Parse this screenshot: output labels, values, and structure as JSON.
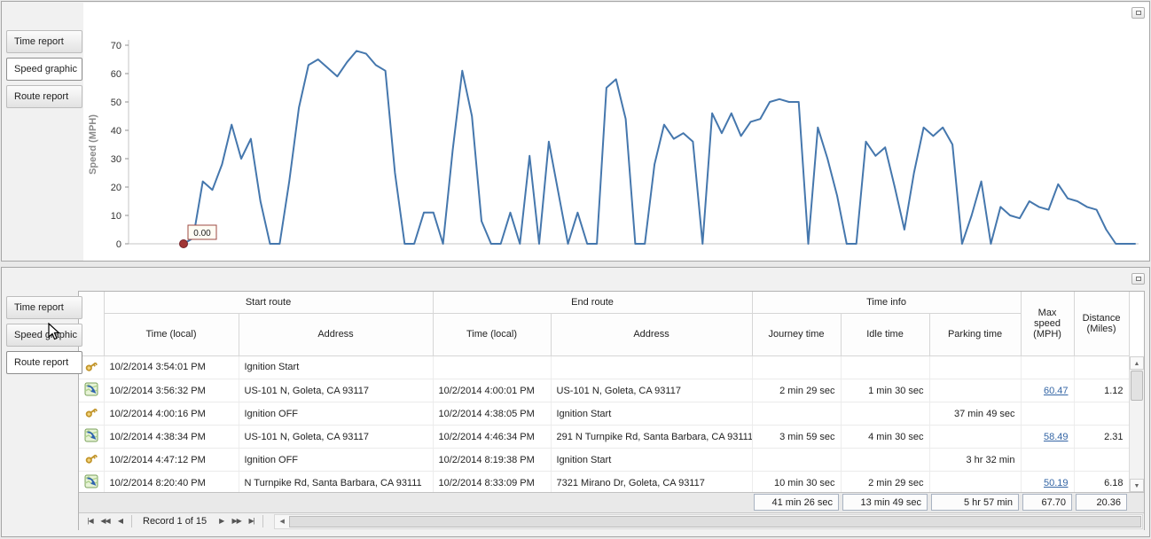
{
  "colors": {
    "chart_line": "#4577ad",
    "marker_fill": "#a03636",
    "marker_stroke": "#72232a",
    "link": "#3566a5",
    "annotation_border": "#9c4a42",
    "annotation_bg": "#fffdf4"
  },
  "tabs": [
    {
      "label": "Time report"
    },
    {
      "label": "Speed graphic"
    },
    {
      "label": "Route report"
    }
  ],
  "top_panel": {
    "active_tab": "Speed graphic"
  },
  "bottom_panel": {
    "active_tab": "Route report"
  },
  "chart_data": {
    "type": "line",
    "title": "",
    "xlabel": "",
    "ylabel": "Speed (MPH)",
    "ylim": [
      0,
      70
    ],
    "yticks": [
      0,
      10,
      20,
      30,
      40,
      50,
      60,
      70
    ],
    "grid": false,
    "legend": false,
    "series": [
      {
        "name": "Speed",
        "values": [
          0,
          2,
          22,
          19,
          28,
          42,
          30,
          37,
          15,
          0,
          0,
          22,
          48,
          63,
          65,
          62,
          59,
          64,
          68,
          67,
          63,
          61,
          25,
          0,
          0,
          11,
          11,
          0,
          33,
          61,
          45,
          8,
          0,
          0,
          11,
          0,
          31,
          0,
          36,
          18,
          0,
          11,
          0,
          0,
          55,
          58,
          44,
          0,
          0,
          28,
          42,
          37,
          39,
          36,
          0,
          46,
          39,
          46,
          38,
          43,
          44,
          50,
          51,
          50,
          50,
          0,
          41,
          30,
          17,
          0,
          0,
          36,
          31,
          34,
          20,
          5,
          25,
          41,
          38,
          41,
          35,
          0,
          10,
          22,
          0,
          13,
          10,
          9,
          15,
          13,
          12,
          21,
          16,
          15,
          13,
          12,
          5,
          0,
          0,
          0
        ]
      }
    ],
    "annotation": {
      "text": "0.00",
      "index": 0
    }
  },
  "table": {
    "groups": [
      "Start route",
      "End route",
      "Time info"
    ],
    "columns": [
      "Time (local)",
      "Address",
      "Time (local)",
      "Address",
      "Journey time",
      "Idle time",
      "Parking time",
      "Max speed (MPH)",
      "Distance (Miles)"
    ],
    "rows": [
      {
        "icon": "key",
        "start_time": "10/2/2014 3:54:01 PM",
        "start_address": "Ignition Start",
        "end_time": "",
        "end_address": "",
        "journey_time": "",
        "idle_time": "",
        "parking_time": "",
        "max_speed": "",
        "max_speed_link": false,
        "distance": ""
      },
      {
        "icon": "route",
        "start_time": "10/2/2014 3:56:32 PM",
        "start_address": "US-101 N, Goleta, CA 93117",
        "end_time": "10/2/2014 4:00:01 PM",
        "end_address": "US-101 N, Goleta, CA 93117",
        "journey_time": "2 min 29 sec",
        "idle_time": "1 min 30 sec",
        "parking_time": "",
        "max_speed": "60.47",
        "max_speed_link": true,
        "distance": "1.12"
      },
      {
        "icon": "key",
        "start_time": "10/2/2014 4:00:16 PM",
        "start_address": "Ignition OFF",
        "end_time": "10/2/2014 4:38:05 PM",
        "end_address": "Ignition Start",
        "journey_time": "",
        "idle_time": "",
        "parking_time": "37 min 49 sec",
        "max_speed": "",
        "max_speed_link": false,
        "distance": ""
      },
      {
        "icon": "route",
        "start_time": "10/2/2014 4:38:34 PM",
        "start_address": "US-101 N, Goleta, CA 93117",
        "end_time": "10/2/2014 4:46:34 PM",
        "end_address": "291 N Turnpike Rd, Santa Barbara, CA 93111",
        "journey_time": "3 min 59 sec",
        "idle_time": "4 min 30 sec",
        "parking_time": "",
        "max_speed": "58.49",
        "max_speed_link": true,
        "distance": "2.31"
      },
      {
        "icon": "key",
        "start_time": "10/2/2014 4:47:12 PM",
        "start_address": "Ignition OFF",
        "end_time": "10/2/2014 8:19:38 PM",
        "end_address": "Ignition Start",
        "journey_time": "",
        "idle_time": "",
        "parking_time": "3 hr 32 min",
        "max_speed": "",
        "max_speed_link": false,
        "distance": ""
      },
      {
        "icon": "route",
        "start_time": "10/2/2014 8:20:40 PM",
        "start_address": "N Turnpike Rd, Santa Barbara, CA 93111",
        "end_time": "10/2/2014 8:33:09 PM",
        "end_address": "7321 Mirano Dr, Goleta, CA 93117",
        "journey_time": "10 min 30 sec",
        "idle_time": "2 min 29 sec",
        "parking_time": "",
        "max_speed": "50.19",
        "max_speed_link": true,
        "distance": "6.18"
      }
    ],
    "summary": {
      "journey_time": "41 min 26 sec",
      "idle_time": "13 min 49 sec",
      "parking_time": "5 hr 57 min",
      "max_speed": "67.70",
      "distance": "20.36"
    }
  },
  "pager": {
    "label": "Record 1 of 15",
    "buttons_left": [
      "|◀",
      "◀◀",
      "◀"
    ],
    "buttons_right": [
      "▶",
      "▶▶",
      "▶|"
    ]
  },
  "icons": {
    "scroll_up": "▲",
    "scroll_down": "▼",
    "scroll_left": "◀"
  }
}
